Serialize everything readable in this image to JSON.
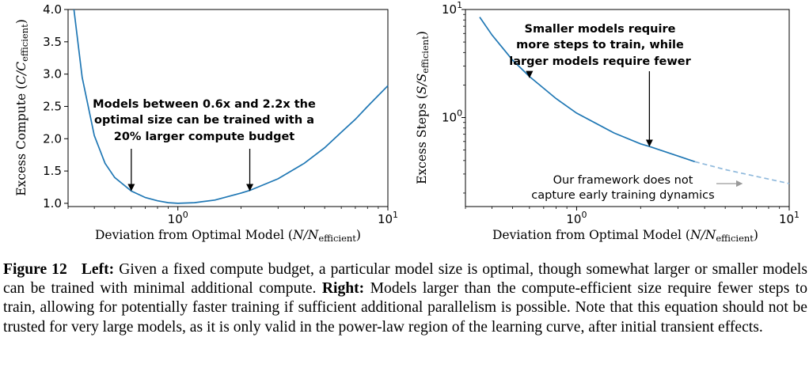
{
  "chart_data": [
    {
      "type": "line",
      "xscale": "log",
      "xlim": [
        0.3,
        10
      ],
      "ylim": [
        0.95,
        4.0
      ],
      "xlabel_prefix": "Deviation from Optimal Model (",
      "xlabel_var": "N/N",
      "xlabel_sub": "efficient",
      "xlabel_suffix": ")",
      "ylabel_prefix": "Excess Compute (",
      "ylabel_var": "C/C",
      "ylabel_sub": "efficient",
      "ylabel_suffix": ")",
      "x_ticks": [
        {
          "value": 1,
          "base": "10",
          "exp": "0"
        },
        {
          "value": 10,
          "base": "10",
          "exp": "1"
        }
      ],
      "y_ticks": [
        {
          "value": 1.0,
          "label": "1.0"
        },
        {
          "value": 1.5,
          "label": "1.5"
        },
        {
          "value": 2.0,
          "label": "2.0"
        },
        {
          "value": 2.5,
          "label": "2.5"
        },
        {
          "value": 3.0,
          "label": "3.0"
        },
        {
          "value": 3.5,
          "label": "3.5"
        },
        {
          "value": 4.0,
          "label": "4.0"
        }
      ],
      "series": [
        {
          "x": [
            0.32,
            0.35,
            0.4,
            0.45,
            0.5,
            0.6,
            0.7,
            0.8,
            0.9,
            1.0,
            1.2,
            1.5,
            2.0,
            2.2,
            3.0,
            4.0,
            5.0,
            6.0,
            7.0,
            8.0,
            9.0,
            10.0
          ],
          "y": [
            4.0,
            2.95,
            2.05,
            1.62,
            1.4,
            1.19,
            1.09,
            1.04,
            1.01,
            1.0,
            1.01,
            1.05,
            1.16,
            1.2,
            1.38,
            1.62,
            1.86,
            2.1,
            2.3,
            2.5,
            2.67,
            2.82
          ]
        }
      ],
      "annotation": {
        "lines": [
          "Models between 0.6x and 2.2x the",
          "optimal size can be trained with a",
          "20% larger compute budget"
        ],
        "arrows": [
          {
            "x": 0.6,
            "y": 1.2
          },
          {
            "x": 2.2,
            "y": 1.2
          }
        ]
      }
    },
    {
      "type": "line",
      "xscale": "log",
      "yscale": "log",
      "xlim": [
        0.3,
        10
      ],
      "ylim": [
        0.15,
        10
      ],
      "xlabel_prefix": "Deviation from Optimal Model (",
      "xlabel_var": "N/N",
      "xlabel_sub": "efficient",
      "xlabel_suffix": ")",
      "ylabel_prefix": "Excess Steps (",
      "ylabel_var": "S/S",
      "ylabel_sub": "efficient",
      "ylabel_suffix": ")",
      "x_ticks": [
        {
          "value": 1,
          "base": "10",
          "exp": "0"
        },
        {
          "value": 10,
          "base": "10",
          "exp": "1"
        }
      ],
      "y_ticks": [
        {
          "value": 1,
          "base": "10",
          "exp": "0"
        },
        {
          "value": 10,
          "base": "10",
          "exp": "1"
        }
      ],
      "series": [
        {
          "style": "solid",
          "x": [
            0.35,
            0.4,
            0.5,
            0.6,
            0.8,
            1.0,
            1.5,
            2.0,
            2.2,
            3.0,
            3.6
          ],
          "y": [
            8.5,
            5.8,
            3.4,
            2.4,
            1.5,
            1.1,
            0.72,
            0.57,
            0.54,
            0.44,
            0.39
          ]
        },
        {
          "style": "dashed",
          "x": [
            3.6,
            5.0,
            7.0,
            10.0
          ],
          "y": [
            0.39,
            0.33,
            0.285,
            0.245
          ]
        }
      ],
      "annotation": {
        "lines": [
          "Smaller models require",
          "more steps to train, while",
          "larger models require fewer"
        ],
        "arrows": [
          {
            "x": 0.6,
            "y": 2.35
          },
          {
            "x": 2.2,
            "y": 0.545
          }
        ],
        "note_lines": [
          "Our framework does not",
          "capture early training dynamics"
        ],
        "note_arrow_target": {
          "x": 6.0,
          "y": 0.38
        }
      }
    }
  ],
  "caption": {
    "fig_label": "Figure 12",
    "left_label": "Left:",
    "left_text": " Given a fixed compute budget, a particular model size is optimal, though somewhat larger or smaller models can be trained with minimal additional compute. ",
    "right_label": "Right:",
    "right_text": " Models larger than the compute-efficient size require fewer steps to train, allowing for potentially faster training if sufficient additional parallelism is possible. Note that this equation should not be trusted for very large models, as it is only valid in the power-law region of the learning curve, after initial transient effects."
  },
  "colors": {
    "line": "#1f77b4",
    "dashed": "#8fb9dc",
    "gray_arrow": "#9a9a9a"
  }
}
